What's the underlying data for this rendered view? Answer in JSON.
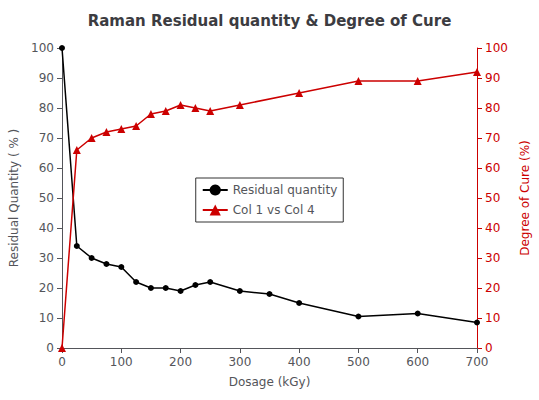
{
  "chart_data": {
    "type": "line",
    "title": "Raman Residual quantity & Degree of Cure",
    "xlabel": "Dosage (kGy)",
    "ylabel": "Residual Quantity ( % )",
    "y2label": "Degree of Cure (%)",
    "xlim": [
      0,
      700
    ],
    "xticks": [
      0,
      100,
      200,
      300,
      400,
      500,
      600,
      700
    ],
    "ylim": [
      0,
      100
    ],
    "yticks": [
      0,
      10,
      20,
      30,
      40,
      50,
      60,
      70,
      80,
      90,
      100
    ],
    "y2lim": [
      0,
      100
    ],
    "y2ticks": [
      0,
      10,
      20,
      30,
      40,
      50,
      60,
      70,
      80,
      90,
      100
    ],
    "grid": false,
    "legend": "center",
    "series": [
      {
        "name": "Residual quantity",
        "color": "#000000",
        "marker": "circle",
        "axis": "y",
        "x": [
          0,
          25,
          50,
          75,
          100,
          125,
          150,
          175,
          200,
          225,
          250,
          300,
          350,
          400,
          500,
          600,
          700
        ],
        "values": [
          100,
          34,
          30,
          28,
          27,
          22,
          20,
          20,
          19,
          21,
          22,
          19,
          18,
          15,
          10.5,
          11.5,
          8.5
        ]
      },
      {
        "name": "Col 1 vs Col 4",
        "color": "#cc0000",
        "marker": "triangle",
        "axis": "y2",
        "x": [
          0,
          25,
          50,
          75,
          100,
          125,
          150,
          175,
          200,
          225,
          250,
          300,
          400,
          500,
          600,
          700
        ],
        "values": [
          0,
          66,
          70,
          72,
          73,
          74,
          78,
          79,
          81,
          80,
          79,
          81,
          85,
          89,
          89,
          92
        ]
      }
    ]
  }
}
